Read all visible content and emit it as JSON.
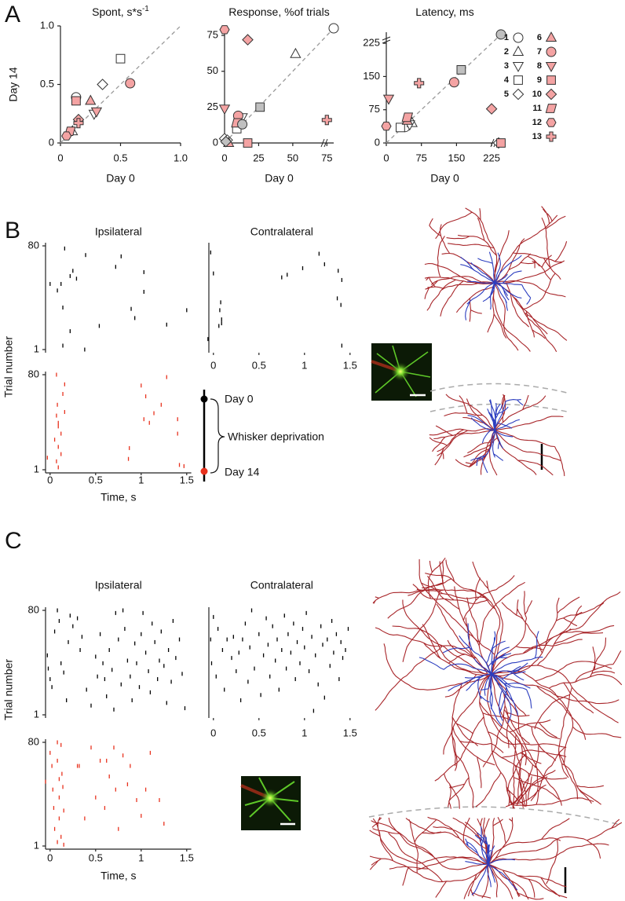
{
  "panels": [
    {
      "label": "A"
    },
    {
      "label": "B",
      "ylabel": "Trial number"
    },
    {
      "label": "C",
      "ylabel": "Trial number"
    }
  ],
  "legend": {
    "entries": [
      {
        "name": "1",
        "marker": "circle",
        "color": "#ffffff"
      },
      {
        "name": "2",
        "marker": "triangle",
        "color": "#ffffff"
      },
      {
        "name": "3",
        "marker": "down",
        "color": "#ffffff"
      },
      {
        "name": "4",
        "marker": "square",
        "color": "#ffffff"
      },
      {
        "name": "5",
        "marker": "diamond",
        "color": "#ffffff"
      },
      {
        "name": "6",
        "marker": "triangle",
        "color": "#f4a3a3"
      },
      {
        "name": "7",
        "marker": "circle",
        "color": "#f4a3a3"
      },
      {
        "name": "8",
        "marker": "down",
        "color": "#f4a3a3"
      },
      {
        "name": "9",
        "marker": "square",
        "color": "#f4a3a3"
      },
      {
        "name": "10",
        "marker": "diamond",
        "color": "#f4a3a3"
      },
      {
        "name": "11",
        "marker": "parallelogram",
        "color": "#f4a3a3"
      },
      {
        "name": "12",
        "marker": "hexagon",
        "color": "#f4a3a3"
      },
      {
        "name": "13",
        "marker": "cross",
        "color": "#f4a3a3"
      }
    ]
  },
  "schematic": {
    "start": "Day 0",
    "label": "Whisker deprivation",
    "end": "Day 14"
  },
  "chart_data": [
    {
      "type": "scatter",
      "title": "Spont, s*s",
      "title_sup": "-1",
      "xlabel": "Day 0",
      "ylabel": "Day 14",
      "xlim": [
        0,
        1
      ],
      "ylim": [
        0,
        1
      ],
      "xticks": [
        0,
        0.5,
        {
          "value": 1,
          "label": "1.0"
        }
      ],
      "yticks": [
        0,
        0.5,
        {
          "value": 1,
          "label": "1.0"
        }
      ],
      "x": [
        0.13,
        0.1,
        0.28,
        0.5,
        0.35,
        0.25,
        0.58,
        0.3,
        0.13,
        0.15,
        0.08,
        0.05,
        0.15
      ],
      "values": [
        0.39,
        0.1,
        0.25,
        0.72,
        0.5,
        0.36,
        0.51,
        0.27,
        0.36,
        0.2,
        0.1,
        0.06,
        0.17
      ],
      "markers": [
        "circle",
        "triangle",
        "down",
        "square",
        "diamond",
        "triangle",
        "circle",
        "down",
        "square",
        "diamond",
        "parallelogram",
        "hexagon",
        "cross"
      ],
      "colors": [
        "#ffffff",
        "#ffffff",
        "#ffffff",
        "#ffffff",
        "#ffffff",
        "#f4a3a3",
        "#f4a3a3",
        "#f4a3a3",
        "#f4a3a3",
        "#f4a3a3",
        "#f4a3a3",
        "#f4a3a3",
        "#f4a3a3"
      ]
    },
    {
      "type": "scatter",
      "title": "Response, %of trials",
      "xlabel": "Day 0",
      "breaks": [
        "x"
      ],
      "xlim": [
        0,
        80
      ],
      "ylim": [
        0,
        80
      ],
      "xticks": [
        0,
        25,
        50,
        75
      ],
      "yticks": [
        0,
        25,
        50,
        75
      ],
      "x": [
        80,
        52,
        13,
        9,
        0,
        2,
        3,
        10,
        0,
        17,
        17,
        9,
        0,
        75,
        13,
        26,
        1
      ],
      "values": [
        80,
        62,
        18,
        10,
        3,
        2,
        0,
        19,
        24,
        0,
        72,
        14,
        79,
        16,
        13,
        25,
        1
      ],
      "markers": [
        "circle",
        "triangle",
        "down",
        "square",
        "diamond",
        "diamond",
        "triangle",
        "circle",
        "down",
        "square",
        "diamond",
        "parallelogram",
        "hexagon",
        "cross",
        "circle",
        "square",
        "diamond"
      ],
      "colors": [
        "#ffffff",
        "#ffffff",
        "#ffffff",
        "#ffffff",
        "#ffffff",
        "#ffffff",
        "#f4a3a3",
        "#f4a3a3",
        "#f4a3a3",
        "#f4a3a3",
        "#f4a3a3",
        "#f4a3a3",
        "#f4a3a3",
        "#f4a3a3",
        "#c0c0c0",
        "#c0c0c0",
        "#c0c0c0"
      ]
    },
    {
      "type": "scatter",
      "title": "Latency, ms",
      "xlabel": "Day 0",
      "breaks": [
        "x",
        "y"
      ],
      "xlim": [
        0,
        250
      ],
      "ylim": [
        0,
        250
      ],
      "xticks": [
        0,
        75,
        150,
        225
      ],
      "yticks": [
        0,
        75,
        150,
        225
      ],
      "x": [
        40,
        55,
        50,
        30,
        240,
        45,
        145,
        5,
        245,
        225,
        45,
        0,
        70,
        245,
        160
      ],
      "values": [
        36,
        45,
        42,
        35,
        0,
        50,
        137,
        100,
        0,
        77,
        58,
        38,
        135,
        245,
        165
      ],
      "markers": [
        "circle",
        "triangle",
        "down",
        "square",
        "diamond",
        "triangle",
        "circle",
        "down",
        "square",
        "diamond",
        "parallelogram",
        "hexagon",
        "cross",
        "circle",
        "square"
      ],
      "colors": [
        "#ffffff",
        "#ffffff",
        "#ffffff",
        "#ffffff",
        "#ffffff",
        "#f4a3a3",
        "#f4a3a3",
        "#f4a3a3",
        "#f4a3a3",
        "#f4a3a3",
        "#f4a3a3",
        "#f4a3a3",
        "#f4a3a3",
        "#c0c0c0",
        "#c0c0c0"
      ]
    },
    {
      "type": "raster",
      "title": "Ipsilateral",
      "color": "#000000",
      "xlim": [
        -0.05,
        1.55
      ],
      "ylim": [
        1,
        80
      ],
      "yticks": [
        1,
        80
      ],
      "x": [
        0.16,
        0.25,
        0.22,
        0.29,
        0.12,
        0,
        0.08,
        0.72,
        0.78,
        1.03,
        1.03,
        0.39,
        0.14,
        0.89,
        0.93,
        1.5,
        1.28,
        0.54,
        0.22,
        0.14,
        0.38
      ],
      "values": [
        78,
        61,
        57,
        55,
        51,
        51,
        46,
        64,
        72,
        60,
        45,
        73,
        33,
        32,
        25,
        31,
        20,
        19,
        15,
        4,
        1
      ]
    },
    {
      "type": "raster",
      "title": "Contralateral",
      "color": "#000000",
      "xlim": [
        -0.05,
        1.55
      ],
      "ylim": [
        1,
        80
      ],
      "xticks": [
        0,
        0.5,
        1,
        1.5
      ],
      "x": [
        -0.03,
        0,
        0.08,
        0.07,
        0.09,
        0.09,
        0.06,
        -0.06,
        0.75,
        0.81,
        0.98,
        1.16,
        1.22,
        1.37,
        1.41,
        1.36,
        1.4,
        1.41
      ],
      "values": [
        75,
        59,
        37,
        31,
        24,
        21,
        19,
        9,
        56,
        58,
        63,
        74,
        66,
        61,
        54,
        40,
        35,
        4
      ]
    },
    {
      "type": "raster",
      "color": "#e8321e",
      "xlabel": "Time, s",
      "xlim": [
        -0.05,
        1.55
      ],
      "ylim": [
        1,
        80
      ],
      "xticks": [
        0,
        0.5,
        1,
        1.5
      ],
      "yticks": [
        1,
        80
      ],
      "x": [
        0.07,
        0.16,
        0.14,
        0.08,
        0.07,
        0.09,
        0.12,
        0.05,
        0.09,
        0.12,
        0.07,
        0.09,
        -0.03,
        0.16,
        0.09,
        1.0,
        1.05,
        1.03,
        1.09,
        1.14,
        1.22,
        1.28,
        1.4,
        1.4,
        1.42,
        1.47,
        0.87,
        0.86
      ],
      "values": [
        80,
        72,
        64,
        55,
        46,
        40,
        31,
        26,
        20,
        14,
        8,
        3,
        11,
        49,
        37,
        71,
        62,
        43,
        40,
        48,
        55,
        78,
        43,
        31,
        5,
        4,
        19,
        10
      ]
    },
    {
      "type": "raster",
      "title": "Ipsilateral",
      "color": "#000000",
      "xlim": [
        -0.05,
        1.55
      ],
      "ylim": [
        1,
        80
      ],
      "yticks": [
        1,
        80
      ],
      "x": [
        -0.03,
        -0.02,
        0,
        0.02,
        0.05,
        0.08,
        0.1,
        0.12,
        0.15,
        0.18,
        0.2,
        0.22,
        0.25,
        0.3,
        0.33,
        0.4,
        0.5,
        0.55,
        0.58,
        0.6,
        0.62,
        0.65,
        0.68,
        0.7,
        0.72,
        0.75,
        0.78,
        0.8,
        0.82,
        0.85,
        0.88,
        0.9,
        0.93,
        0.95,
        0.98,
        1.0,
        1.02,
        1.05,
        1.08,
        1.1,
        1.12,
        1.15,
        1.18,
        1.2,
        1.22,
        1.25,
        1.28,
        1.3,
        1.33,
        1.35,
        1.38,
        1.42,
        1.45,
        1.48,
        0.35,
        0.45,
        0.52
      ],
      "values": [
        46,
        36,
        28,
        22,
        64,
        80,
        72,
        40,
        33,
        12,
        56,
        76,
        68,
        74,
        50,
        20,
        45,
        62,
        40,
        28,
        15,
        50,
        35,
        5,
        78,
        58,
        24,
        80,
        66,
        42,
        30,
        12,
        55,
        40,
        22,
        62,
        78,
        48,
        34,
        18,
        70,
        56,
        28,
        42,
        64,
        38,
        10,
        50,
        26,
        72,
        44,
        58,
        32,
        6,
        60,
        8,
        30
      ]
    },
    {
      "type": "raster",
      "title": "Contralateral",
      "color": "#000000",
      "xlim": [
        -0.05,
        1.55
      ],
      "ylim": [
        1,
        80
      ],
      "xticks": [
        0,
        0.5,
        1,
        1.5
      ],
      "x": [
        -0.03,
        -0.02,
        0,
        0.03,
        0.05,
        0.1,
        0.12,
        0.15,
        0.2,
        0.22,
        0.25,
        0.28,
        0.3,
        0.32,
        0.35,
        0.38,
        0.4,
        0.42,
        0.45,
        0.5,
        0.52,
        0.55,
        0.58,
        0.6,
        0.62,
        0.65,
        0.68,
        0.7,
        0.72,
        0.75,
        0.78,
        0.8,
        0.82,
        0.85,
        0.88,
        0.9,
        0.92,
        0.95,
        0.98,
        1.0,
        1.02,
        1.05,
        1.08,
        1.1,
        1.12,
        1.15,
        1.18,
        1.2,
        1.22,
        1.25,
        1.28,
        1.3,
        1.32,
        1.35,
        1.38,
        1.4,
        1.42,
        1.45,
        1.48
      ],
      "values": [
        58,
        40,
        75,
        30,
        66,
        50,
        20,
        58,
        44,
        60,
        34,
        48,
        12,
        58,
        70,
        26,
        52,
        80,
        36,
        62,
        16,
        46,
        74,
        54,
        30,
        68,
        42,
        58,
        20,
        50,
        76,
        36,
        62,
        48,
        70,
        28,
        56,
        40,
        66,
        52,
        78,
        34,
        60,
        4,
        46,
        24,
        68,
        54,
        14,
        58,
        38,
        72,
        48,
        62,
        28,
        56,
        44,
        50,
        66
      ]
    },
    {
      "type": "raster",
      "color": "#e8321e",
      "xlabel": "Time, s",
      "xlim": [
        -0.05,
        1.55
      ],
      "ylim": [
        1,
        80
      ],
      "xticks": [
        0,
        0.5,
        1,
        1.5
      ],
      "yticks": [
        1,
        80
      ],
      "x": [
        -0.05,
        0,
        0.02,
        0.03,
        0.04,
        0.05,
        0.08,
        0.08,
        0.1,
        0.1,
        0.1,
        0.12,
        0.12,
        0.13,
        0.14,
        0.15,
        0.15,
        0.08,
        0.3,
        0.32,
        0.45,
        0.5,
        0.55,
        0.6,
        0.65,
        0.7,
        0.72,
        0.75,
        0.8,
        0.85,
        0.88,
        0.95,
        1.0,
        1.05,
        1.1,
        1.2,
        1.25,
        0.38,
        0.62
      ],
      "values": [
        50,
        72,
        62,
        44,
        30,
        14,
        80,
        66,
        52,
        38,
        22,
        78,
        8,
        56,
        46,
        28,
        2,
        4,
        62,
        62,
        76,
        38,
        66,
        30,
        54,
        76,
        44,
        14,
        70,
        48,
        62,
        36,
        24,
        44,
        72,
        36,
        18,
        22,
        66
      ]
    }
  ]
}
